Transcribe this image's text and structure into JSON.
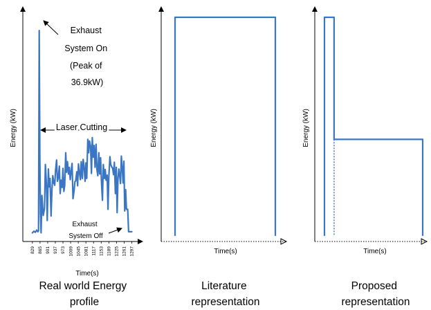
{
  "colors": {
    "series": "#3a76c3",
    "axis": "#000000"
  },
  "chart_data": [
    {
      "type": "line",
      "caption": [
        "Real world Energy",
        "profile"
      ],
      "xlabel": "Time(s)",
      "ylabel": "Energy (kW)",
      "x_ticks": [
        "829",
        "865",
        "901",
        "937",
        "973",
        "1009",
        "1045",
        "1081",
        "1117",
        "1153",
        "1189",
        "1225",
        "1261",
        "1297"
      ],
      "xlim": [
        810,
        1315
      ],
      "ylim": [
        0,
        40
      ],
      "annotations": {
        "peak": [
          "Exhaust",
          "System On",
          "(Peak of",
          "36.9kW)"
        ],
        "cutting": "Laser Cutting",
        "off": [
          "Exhaust",
          "System Off"
        ]
      },
      "series": [
        {
          "x": [
            829,
            836,
            843,
            849,
            855,
            858,
            861,
            864,
            867,
            870,
            874,
            880,
            886,
            890,
            895,
            899,
            904,
            908,
            912,
            917,
            921,
            925,
            930,
            934,
            938,
            943,
            947,
            951,
            956,
            960,
            964,
            969,
            973,
            977,
            981,
            986,
            990,
            994,
            999,
            1003,
            1007,
            1012,
            1016,
            1020,
            1025,
            1029,
            1033,
            1038,
            1042,
            1046,
            1051,
            1055,
            1059,
            1064,
            1068,
            1072,
            1077,
            1081,
            1085,
            1090,
            1094,
            1098,
            1103,
            1107,
            1111,
            1116,
            1120,
            1124,
            1129,
            1133,
            1137,
            1142,
            1146,
            1150,
            1155,
            1159,
            1163,
            1168,
            1172,
            1176,
            1181,
            1185,
            1189,
            1194,
            1198,
            1202,
            1207,
            1211,
            1215,
            1220,
            1224,
            1228,
            1232,
            1236,
            1240,
            1244,
            1248,
            1252,
            1256,
            1260,
            1264,
            1268,
            1272,
            1276,
            1278,
            1282,
            1286,
            1290,
            1297
          ],
          "y": [
            0.8,
            1.1,
            0.9,
            1.3,
            1.0,
            1.2,
            36.9,
            14.3,
            4.2,
            0.8,
            7.5,
            3.9,
            5.1,
            13.0,
            9.5,
            3.0,
            12.2,
            9.0,
            10.5,
            3.8,
            8.5,
            11.0,
            9.7,
            9.3,
            12.0,
            13.8,
            10.0,
            10.7,
            12.7,
            7.8,
            10.2,
            8.9,
            12.3,
            8.2,
            9.2,
            15.1,
            11.6,
            13.5,
            11.3,
            12.5,
            10.3,
            12.0,
            13.2,
            6.9,
            8.2,
            9.9,
            10.1,
            11.7,
            9.2,
            13.1,
            11.4,
            10.3,
            13.5,
            10.5,
            13.9,
            12.8,
            10.0,
            13.3,
            10.5,
            17.5,
            15.1,
            17.2,
            16.3,
            11.4,
            17.8,
            14.3,
            16.4,
            12.5,
            16.6,
            12.1,
            11.0,
            15.1,
            11.3,
            14.2,
            9.3,
            6.6,
            13.0,
            10.5,
            12.1,
            10.2,
            11.1,
            5.0,
            10.8,
            14.4,
            13.0,
            12.6,
            12.3,
            11.2,
            13.4,
            7.8,
            12.5,
            4.4,
            10.4,
            12.2,
            11.0,
            9.6,
            14.5,
            12.4,
            9.7,
            13.6,
            4.7,
            8.5,
            5.0,
            5.0,
            5.0,
            1.0,
            1.0,
            1.0,
            1.0
          ]
        }
      ]
    },
    {
      "type": "line",
      "caption": [
        "Literature",
        "representation"
      ],
      "xlabel": "Time(s)",
      "ylabel": "Energy (kW)",
      "series": [
        {
          "x": [
            0,
            0,
            1,
            1
          ],
          "y": [
            0,
            1,
            1,
            0
          ]
        }
      ]
    },
    {
      "type": "line",
      "caption": [
        "Proposed",
        "representation"
      ],
      "xlabel": "Time(s)",
      "ylabel": "Energy (kW)",
      "series": [
        {
          "x": [
            0,
            0,
            0.098,
            0.098
          ],
          "y": [
            0,
            1,
            1,
            0.44
          ]
        },
        {
          "x": [
            0.098,
            1,
            1
          ],
          "y": [
            0.44,
            0.44,
            0
          ]
        }
      ],
      "divider_x": 0.098
    }
  ]
}
